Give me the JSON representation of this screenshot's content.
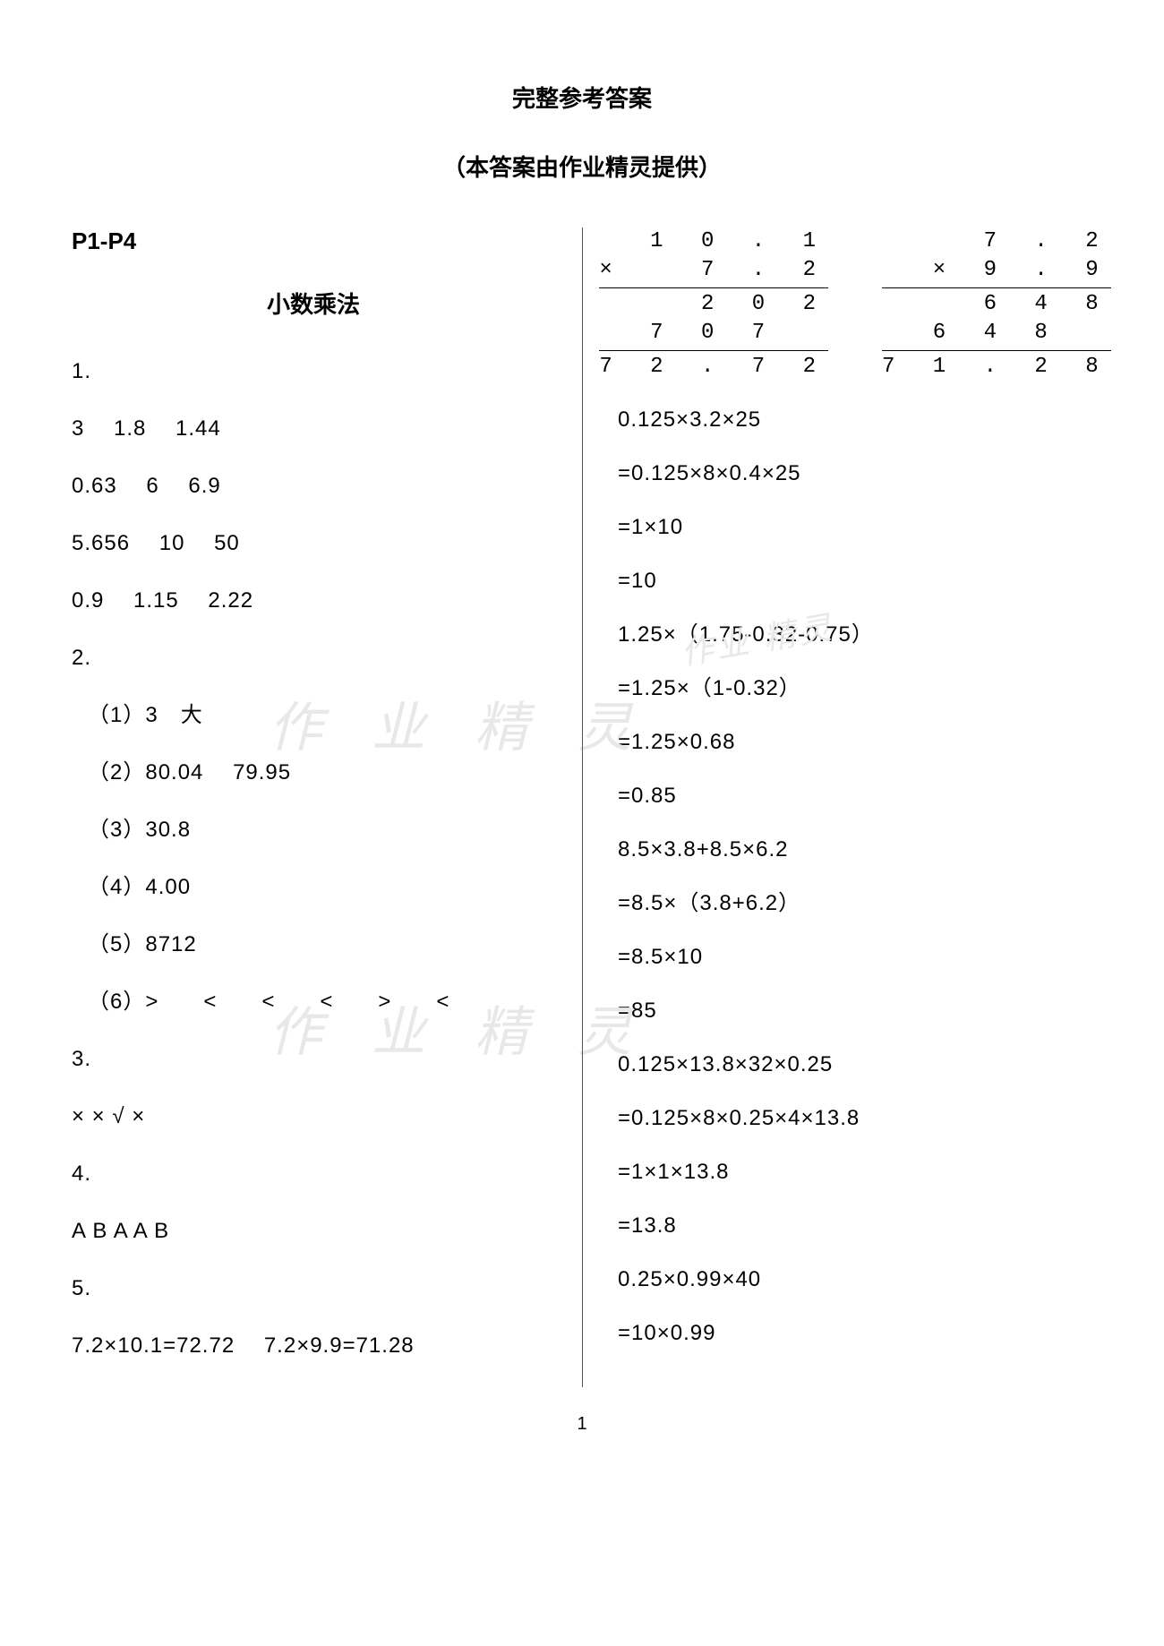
{
  "header": {
    "title": "完整参考答案",
    "subtitle": "（本答案由作业精灵提供）"
  },
  "left": {
    "page_ref": "P1-P4",
    "section_title": "小数乘法",
    "q1_label": "1.",
    "q1_row1": "3　 1.8　 1.44",
    "q1_row2": "0.63　 6　 6.9",
    "q1_row3": "5.656　 10　 50",
    "q1_row4": "0.9　 1.15　 2.22",
    "q2_label": "2.",
    "q2_1": "（1）3　大",
    "q2_2": "（2）80.04　 79.95",
    "q2_3": "（3）30.8",
    "q2_4": "（4）4.00",
    "q2_5": "（5）8712",
    "q2_6": "（6）>　　<　　<　　<　　>　　<",
    "q3_label": "3.",
    "q3_row": "×  ×  √  ×",
    "q4_label": "4.",
    "q4_row": "A B A A B",
    "q5_label": "5.",
    "q5_row": "7.2×10.1=72.72　 7.2×9.9=71.28"
  },
  "right": {
    "vm1": {
      "r1": "1 0 . 1",
      "r2": "×   7 . 2",
      "r3": "2 0 2",
      "r4": "7 0 7  ",
      "r5": "7 2 . 7 2"
    },
    "vm2": {
      "r1": "7 . 2",
      "r2": "× 9 . 9",
      "r3": "6 4 8",
      "r4": "6 4 8  ",
      "r5": "7 1 . 2 8"
    },
    "calc": [
      "0.125×3.2×25",
      "=0.125×8×0.4×25",
      "=1×10",
      "=10",
      "1.25×（1.75-0.32-0.75）",
      "=1.25×（1-0.32）",
      "=1.25×0.68",
      "=0.85",
      "8.5×3.8+8.5×6.2",
      "=8.5×（3.8+6.2）",
      "=8.5×10",
      "=85",
      "0.125×13.8×32×0.25",
      "=0.125×8×0.25×4×13.8",
      "=1×1×13.8",
      "=13.8",
      "0.25×0.99×40",
      "=10×0.99"
    ]
  },
  "watermarks": {
    "wm1": "作 业 精 灵",
    "wm2": "作 业 精 灵",
    "wm3": "作业\n精灵"
  },
  "page_number": "1"
}
